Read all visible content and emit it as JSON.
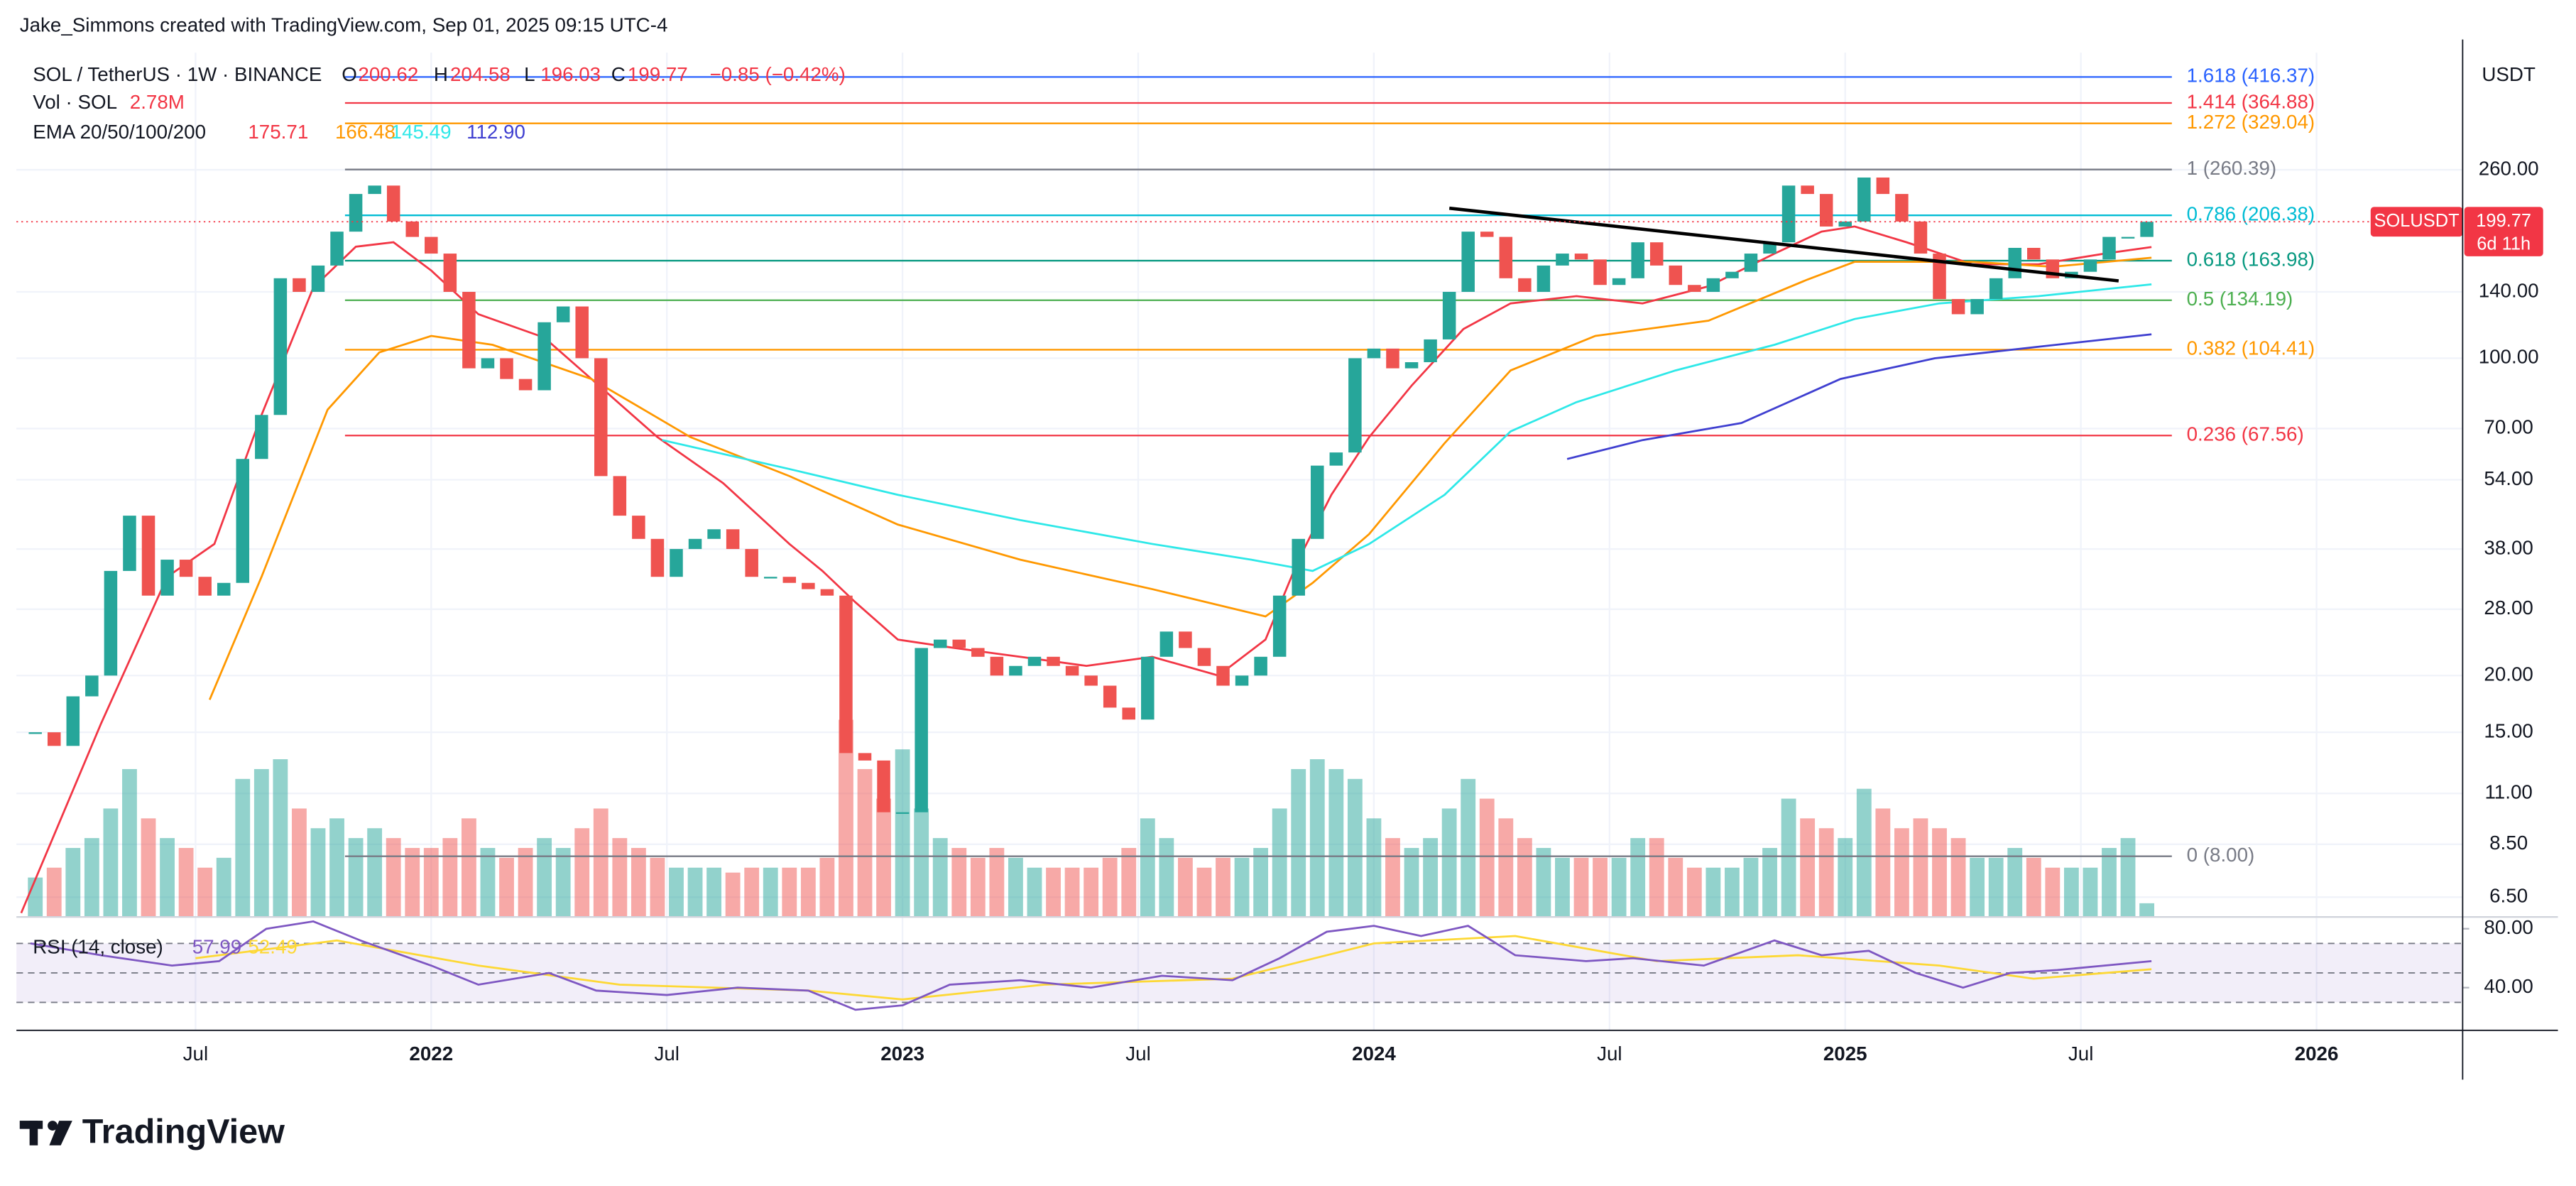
{
  "header": "Jake_Simmons created with TradingView.com, Sep 01, 2025 09:15 UTC-4",
  "legend": {
    "symbol": "SOL / TetherUS · 1W · BINANCE",
    "ohlc": [
      {
        "key": "O",
        "value": "200.62"
      },
      {
        "key": "H",
        "value": "204.58"
      },
      {
        "key": "L",
        "value": "196.03"
      },
      {
        "key": "C",
        "value": "199.77"
      }
    ],
    "change": "−0.85 (−0.42%)",
    "vol_label": "Vol · SOL",
    "vol_value": "2.78M",
    "ema_label": "EMA 20/50/100/200",
    "ema_values": [
      "175.71",
      "166.48",
      "145.49",
      "112.90"
    ],
    "rsi_label": "RSI (14, close)",
    "rsi_values": [
      "57.99",
      "52.49"
    ]
  },
  "price_label": {
    "symbol": "SOLUSDT",
    "price": "199.77",
    "countdown": "6d 11h"
  },
  "currency": "USDT",
  "watermark": "TradingView",
  "chart_data": {
    "type": "candlestick",
    "log_scale": true,
    "grid": true,
    "up_color": "#26a69a",
    "down_color": "#ef5350",
    "xlim": [
      2021.12,
      2026.31
    ],
    "xticks": [
      {
        "value": 2021.5,
        "label": "Jul"
      },
      2022,
      {
        "value": 2022.5,
        "label": "Jul"
      },
      2023,
      {
        "value": 2023.5,
        "label": "Jul"
      },
      2024,
      {
        "value": 2024.5,
        "label": "Jul"
      },
      2025,
      {
        "value": 2025.5,
        "label": "Jul"
      },
      2026
    ],
    "ylim": [
      5.88,
      471
    ],
    "yticks": [
      {
        "value": 6.5,
        "label": "6.50"
      },
      {
        "value": 8.5,
        "label": "8.50"
      },
      {
        "value": 11,
        "label": "11.00"
      },
      {
        "value": 15,
        "label": "15.00"
      },
      {
        "value": 20,
        "label": "20.00"
      },
      {
        "value": 28,
        "label": "28.00"
      },
      {
        "value": 38,
        "label": "38.00"
      },
      {
        "value": 54,
        "label": "54.00"
      },
      {
        "value": 70,
        "label": "70.00"
      },
      {
        "value": 100,
        "label": "100.00"
      },
      {
        "value": 140,
        "label": "140.00"
      },
      {
        "value": 260,
        "label": "260.00"
      }
    ],
    "last_price": 199.77,
    "x": [
      2021.16,
      2021.2,
      2021.24,
      2021.28,
      2021.32,
      2021.36,
      2021.4,
      2021.44,
      2021.48,
      2021.52,
      2021.56,
      2021.6,
      2021.64,
      2021.68,
      2021.72,
      2021.76,
      2021.8,
      2021.84,
      2021.88,
      2021.92,
      2021.96,
      2022.0,
      2022.04,
      2022.08,
      2022.12,
      2022.16,
      2022.2,
      2022.24,
      2022.28,
      2022.32,
      2022.36,
      2022.4,
      2022.44,
      2022.48,
      2022.52,
      2022.56,
      2022.6,
      2022.64,
      2022.68,
      2022.72,
      2022.76,
      2022.8,
      2022.84,
      2022.88,
      2022.92,
      2022.96,
      2023.0,
      2023.04,
      2023.08,
      2023.12,
      2023.16,
      2023.2,
      2023.24,
      2023.28,
      2023.32,
      2023.36,
      2023.4,
      2023.44,
      2023.48,
      2023.52,
      2023.56,
      2023.6,
      2023.64,
      2023.68,
      2023.72,
      2023.76,
      2023.8,
      2023.84,
      2023.88,
      2023.92,
      2023.96,
      2024.0,
      2024.04,
      2024.08,
      2024.12,
      2024.16,
      2024.2,
      2024.24,
      2024.28,
      2024.32,
      2024.36,
      2024.4,
      2024.44,
      2024.48,
      2024.52,
      2024.56,
      2024.6,
      2024.64,
      2024.68,
      2024.72,
      2024.76,
      2024.8,
      2024.84,
      2024.88,
      2024.92,
      2024.96,
      2025.0,
      2025.04,
      2025.08,
      2025.12,
      2025.16,
      2025.2,
      2025.24,
      2025.28,
      2025.32,
      2025.36,
      2025.4,
      2025.44,
      2025.48,
      2025.52,
      2025.56,
      2025.6,
      2025.64
    ],
    "close": [
      15,
      14,
      18,
      20,
      34,
      45,
      30,
      36,
      33,
      30,
      32,
      60,
      75,
      150,
      140,
      160,
      190,
      230,
      240,
      200,
      185,
      170,
      140,
      95,
      100,
      90,
      85,
      120,
      130,
      100,
      55,
      45,
      40,
      33,
      38,
      40,
      42,
      38,
      33,
      33,
      32,
      31,
      30,
      13.5,
      13,
      10,
      10,
      23,
      24,
      23,
      22,
      20,
      21,
      22,
      21,
      20,
      19,
      17,
      16,
      22,
      25,
      23,
      21,
      19,
      20,
      22,
      30,
      40,
      58,
      62,
      100,
      105,
      95,
      98,
      110,
      140,
      190,
      185,
      150,
      140,
      160,
      170,
      165,
      145,
      150,
      180,
      160,
      145,
      140,
      150,
      155,
      170,
      180,
      240,
      230,
      195,
      200,
      250,
      230,
      200,
      170,
      135,
      125,
      135,
      150,
      175,
      165,
      150,
      155,
      165,
      185,
      185,
      199.77
    ],
    "volume": [
      8,
      10,
      14,
      16,
      22,
      30,
      20,
      16,
      14,
      10,
      12,
      28,
      30,
      32,
      22,
      18,
      20,
      16,
      18,
      16,
      14,
      14,
      16,
      20,
      14,
      12,
      14,
      16,
      14,
      18,
      22,
      16,
      14,
      12,
      10,
      10,
      10,
      9,
      10,
      10,
      10,
      10,
      12,
      40,
      30,
      24,
      34,
      22,
      16,
      14,
      12,
      14,
      12,
      10,
      10,
      10,
      10,
      12,
      14,
      20,
      16,
      12,
      10,
      12,
      12,
      14,
      22,
      30,
      32,
      30,
      28,
      20,
      16,
      14,
      16,
      22,
      28,
      24,
      20,
      16,
      14,
      12,
      12,
      12,
      12,
      16,
      16,
      12,
      10,
      10,
      10,
      12,
      14,
      24,
      20,
      18,
      16,
      26,
      22,
      18,
      20,
      18,
      16,
      12,
      12,
      14,
      12,
      10,
      10,
      10,
      14,
      16,
      2.78
    ],
    "lines": [
      {
        "color": "#f23645",
        "x": [
          2021.13,
          2021.3,
          2021.44,
          2021.54,
          2021.64,
          2021.75,
          2021.84,
          2021.92,
          2022.0,
          2022.1,
          2022.24,
          2022.34,
          2022.48,
          2022.62,
          2022.76,
          2022.83,
          2022.9,
          2022.99,
          2023.11,
          2023.25,
          2023.39,
          2023.53,
          2023.67,
          2023.77,
          2023.84,
          2023.91,
          2023.99,
          2024.08,
          2024.19,
          2024.29,
          2024.43,
          2024.57,
          2024.71,
          2024.85,
          2024.95,
          2025.02,
          2025.13,
          2025.27,
          2025.41,
          2025.55,
          2025.65
        ],
        "values": [
          6,
          15.7,
          33,
          39,
          75,
          143,
          176,
          180,
          156,
          125,
          111,
          90,
          67,
          53,
          39,
          34,
          29,
          24,
          23,
          22,
          21,
          22,
          20,
          24,
          36,
          50,
          67,
          87,
          116,
          132,
          137,
          132,
          144,
          170,
          190,
          195,
          180,
          161,
          161,
          170,
          175.71
        ]
      },
      {
        "color": "#ff9800",
        "x": [
          2021.53,
          2021.64,
          2021.78,
          2021.89,
          2022.0,
          2022.13,
          2022.34,
          2022.55,
          2022.76,
          2022.99,
          2023.25,
          2023.53,
          2023.77,
          2023.87,
          2023.99,
          2024.15,
          2024.29,
          2024.47,
          2024.71,
          2024.92,
          2025.02,
          2025.27,
          2025.44,
          2025.65
        ],
        "values": [
          17.7,
          33,
          77,
          103,
          112,
          107,
          90,
          67,
          55,
          43,
          36,
          31,
          27,
          32,
          41,
          65,
          94,
          112,
          121,
          149,
          163,
          163,
          159,
          166.48
        ]
      },
      {
        "color": "#2ee8e8",
        "x": [
          2022.49,
          2022.76,
          2022.99,
          2023.25,
          2023.53,
          2023.74,
          2023.87,
          2023.99,
          2024.15,
          2024.29,
          2024.43,
          2024.64,
          2024.85,
          2025.02,
          2025.2,
          2025.41,
          2025.65
        ],
        "values": [
          66,
          57,
          50,
          44,
          39,
          36,
          34,
          39,
          50,
          69,
          80,
          94,
          107,
          122,
          132,
          137,
          145.49
        ]
      },
      {
        "color": "#3f3fd0",
        "x": [
          2024.41,
          2024.57,
          2024.78,
          2024.99,
          2025.19,
          2025.41,
          2025.65
        ],
        "values": [
          60,
          66,
          72,
          90,
          100,
          106,
          112.9
        ]
      }
    ],
    "fib_levels": [
      {
        "label": "1.618 (416.37)",
        "price": 416.37,
        "color": "#2962ff"
      },
      {
        "label": "1.414 (364.88)",
        "price": 364.88,
        "color": "#f23645"
      },
      {
        "label": "1.272 (329.04)",
        "price": 329.04,
        "color": "#ff9800"
      },
      {
        "label": "1 (260.39)",
        "price": 260.39,
        "color": "#787b86"
      },
      {
        "label": "0.786 (206.38)",
        "price": 206.38,
        "color": "#00bcd4"
      },
      {
        "label": "0.618 (163.98)",
        "price": 163.98,
        "color": "#089981"
      },
      {
        "label": "0.5 (134.19)",
        "price": 134.19,
        "color": "#4caf50"
      },
      {
        "label": "0.382 (104.41)",
        "price": 104.41,
        "color": "#ff9800"
      },
      {
        "label": "0.236 (67.56)",
        "price": 67.56,
        "color": "#f23645"
      },
      {
        "label": "0 (8.00)",
        "price": 8.0,
        "color": "#787b86"
      }
    ],
    "trendline": {
      "color": "#000000",
      "x": [
        2024.16,
        2025.58
      ],
      "values": [
        214,
        148
      ]
    },
    "rsi": {
      "ylim": [
        11,
        88
      ],
      "yticks": [
        {
          "value": 80,
          "label": "80.00"
        },
        {
          "value": 40,
          "label": "40.00"
        }
      ],
      "bands": [
        70,
        50,
        30
      ],
      "band_color": "#7e57c2",
      "line": {
        "color": "#7e57c2",
        "x": [
          2021.15,
          2021.3,
          2021.45,
          2021.55,
          2021.65,
          2021.75,
          2021.85,
          2022.0,
          2022.1,
          2022.25,
          2022.35,
          2022.5,
          2022.65,
          2022.8,
          2022.9,
          2023.0,
          2023.1,
          2023.25,
          2023.4,
          2023.55,
          2023.7,
          2023.8,
          2023.9,
          2024.0,
          2024.1,
          2024.2,
          2024.3,
          2024.45,
          2024.55,
          2024.7,
          2024.85,
          2024.95,
          2025.05,
          2025.15,
          2025.25,
          2025.35,
          2025.45,
          2025.55,
          2025.65
        ],
        "values": [
          70,
          62,
          55,
          58,
          80,
          85,
          72,
          55,
          42,
          50,
          38,
          35,
          40,
          38,
          25,
          28,
          42,
          45,
          40,
          48,
          45,
          60,
          78,
          82,
          75,
          82,
          62,
          58,
          60,
          55,
          72,
          62,
          65,
          50,
          40,
          50,
          52,
          55,
          57.99
        ]
      },
      "ma": {
        "color": "#fdd835",
        "x": [
          2021.5,
          2021.8,
          2022.1,
          2022.4,
          2022.8,
          2023.0,
          2023.3,
          2023.7,
          2024.0,
          2024.3,
          2024.6,
          2024.9,
          2025.2,
          2025.4,
          2025.65
        ],
        "values": [
          60,
          72,
          55,
          42,
          38,
          32,
          42,
          46,
          70,
          75,
          58,
          62,
          55,
          46,
          52.49
        ]
      }
    }
  }
}
